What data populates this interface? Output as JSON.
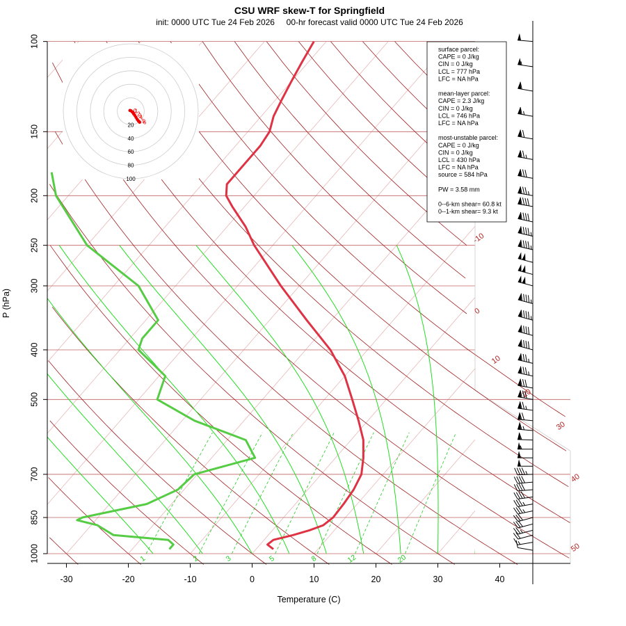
{
  "title": "CSU WRF skew-T for Springfield",
  "subtitle": "init: 0000 UTC Tue 24 Feb 2026     00-hr forecast valid 0000 UTC Tue 24 Feb 2026",
  "chart_data": {
    "type": "skew-t",
    "xlabel": "Temperature (C)",
    "ylabel": "P (hPa)",
    "xticks": [
      "-30",
      "-20",
      "-10",
      "0",
      "10",
      "20",
      "30",
      "40"
    ],
    "xtick_values": [
      -30,
      -20,
      -10,
      0,
      10,
      20,
      30,
      40
    ],
    "yticks": [
      "100",
      "150",
      "200",
      "250",
      "300",
      "400",
      "500",
      "700",
      "850",
      "1000"
    ],
    "ytick_values": [
      100,
      150,
      200,
      250,
      300,
      400,
      500,
      700,
      850,
      1000
    ],
    "xlim": [
      -33,
      45
    ],
    "ylim": [
      1050,
      100
    ],
    "isobars": [
      100,
      150,
      200,
      250,
      300,
      400,
      500,
      700,
      850,
      1000
    ],
    "isotherm_labels": [
      "-10",
      "0",
      "10",
      "20",
      "30",
      "40",
      "50"
    ],
    "isotherm_label_values": [
      -10,
      0,
      10,
      20,
      30,
      40,
      50
    ],
    "mixing_ratio_labels": [
      "1",
      "2",
      "3",
      "5",
      "8",
      "12",
      "20"
    ],
    "mixing_ratio_values": [
      1,
      2,
      3,
      5,
      8,
      12,
      20
    ],
    "temperature_profile": [
      [
        980,
        2.8
      ],
      [
        960,
        1.2
      ],
      [
        940,
        1.5
      ],
      [
        920,
        4.0
      ],
      [
        900,
        6.0
      ],
      [
        880,
        7.5
      ],
      [
        850,
        8.0
      ],
      [
        800,
        7.8
      ],
      [
        750,
        7.4
      ],
      [
        700,
        6.5
      ],
      [
        650,
        4.5
      ],
      [
        600,
        2.0
      ],
      [
        550,
        -1.5
      ],
      [
        500,
        -5.5
      ],
      [
        450,
        -10.0
      ],
      [
        400,
        -16.0
      ],
      [
        350,
        -24.0
      ],
      [
        300,
        -33.0
      ],
      [
        250,
        -43.0
      ],
      [
        230,
        -47.0
      ],
      [
        210,
        -52.0
      ],
      [
        200,
        -54.5
      ],
      [
        190,
        -56.0
      ],
      [
        180,
        -56.0
      ],
      [
        170,
        -56.0
      ],
      [
        160,
        -56.0
      ],
      [
        150,
        -56.5
      ],
      [
        140,
        -58.0
      ],
      [
        130,
        -59.0
      ],
      [
        120,
        -60.0
      ],
      [
        110,
        -61.0
      ],
      [
        100,
        -62.0
      ]
    ],
    "dewpoint_profile": [
      [
        980,
        -14.0
      ],
      [
        960,
        -14.0
      ],
      [
        940,
        -15.5
      ],
      [
        920,
        -25.0
      ],
      [
        880,
        -29.0
      ],
      [
        860,
        -33.0
      ],
      [
        850,
        -32.5
      ],
      [
        800,
        -24.0
      ],
      [
        750,
        -21.0
      ],
      [
        700,
        -20.5
      ],
      [
        650,
        -13.0
      ],
      [
        600,
        -17.0
      ],
      [
        550,
        -28.0
      ],
      [
        500,
        -37.0
      ],
      [
        450,
        -39.0
      ],
      [
        400,
        -47.0
      ],
      [
        380,
        -48.0
      ],
      [
        350,
        -48.0
      ],
      [
        300,
        -56.0
      ],
      [
        250,
        -70.0
      ],
      [
        200,
        -82.0
      ],
      [
        180,
        -86.0
      ]
    ],
    "wind_profile": [
      [
        985,
        280,
        8
      ],
      [
        950,
        260,
        15
      ],
      [
        920,
        255,
        20
      ],
      [
        900,
        255,
        25
      ],
      [
        875,
        255,
        28
      ],
      [
        850,
        255,
        30
      ],
      [
        825,
        258,
        33
      ],
      [
        800,
        260,
        35
      ],
      [
        775,
        262,
        38
      ],
      [
        750,
        265,
        40
      ],
      [
        725,
        265,
        42
      ],
      [
        700,
        268,
        45
      ],
      [
        675,
        270,
        48
      ],
      [
        650,
        270,
        50
      ],
      [
        625,
        270,
        55
      ],
      [
        600,
        272,
        60
      ],
      [
        575,
        275,
        65
      ],
      [
        550,
        275,
        70
      ],
      [
        525,
        278,
        75
      ],
      [
        500,
        280,
        80
      ],
      [
        475,
        280,
        80
      ],
      [
        450,
        282,
        85
      ],
      [
        425,
        283,
        85
      ],
      [
        400,
        285,
        90
      ],
      [
        375,
        285,
        90
      ],
      [
        350,
        285,
        95
      ],
      [
        325,
        285,
        95
      ],
      [
        300,
        285,
        100
      ],
      [
        285,
        285,
        100
      ],
      [
        270,
        285,
        100
      ],
      [
        255,
        283,
        95
      ],
      [
        240,
        283,
        95
      ],
      [
        225,
        282,
        90
      ],
      [
        210,
        280,
        90
      ],
      [
        200,
        280,
        85
      ],
      [
        185,
        280,
        80
      ],
      [
        170,
        280,
        75
      ],
      [
        155,
        280,
        70
      ],
      [
        140,
        280,
        65
      ],
      [
        125,
        280,
        60
      ],
      [
        112,
        278,
        55
      ],
      [
        100,
        275,
        50
      ]
    ],
    "hodograph": {
      "ring_labels": [
        "20",
        "40",
        "60",
        "80",
        "100"
      ],
      "ring_values": [
        20,
        40,
        60,
        80,
        100
      ],
      "points": [
        [
          -2,
          2
        ],
        [
          1,
          1
        ],
        [
          4,
          -2
        ],
        [
          7,
          -6
        ],
        [
          10,
          -10
        ],
        [
          13,
          -15
        ],
        [
          16,
          -20
        ],
        [
          19,
          -24
        ],
        [
          22,
          -27
        ]
      ],
      "height_labels": [
        "0",
        "1",
        "2",
        "3",
        "4",
        "5",
        "6"
      ]
    }
  },
  "stats": {
    "lines": [
      "surface parcel:",
      "CAPE = 0 J/kg",
      "CIN = 0 J/kg",
      "LCL = 777 hPa",
      "LFC = NA hPa",
      "",
      "mean-layer parcel:",
      "CAPE = 2.3 J/kg",
      "CIN = 0 J/kg",
      "LCL = 746 hPa",
      "LFC = NA hPa",
      "",
      "most-unstable parcel:",
      "CAPE = 0 J/kg",
      "CIN = 0 J/kg",
      "LCL = 430 hPa",
      "LFC = NA hPa",
      "source = 584 hPa",
      "",
      "PW =  3.58 mm",
      "",
      "0--6-km shear= 60.8 kt",
      "0--1-km shear= 9.3 kt"
    ]
  },
  "colors": {
    "isobar": "#c06060",
    "isotherm": "#e8b8b8",
    "dry_adiabat": "#a02020",
    "moist_adiabat": "#22dd22",
    "mixing_ratio": "#22cc22",
    "temperature": "#dd3344",
    "dewpoint": "#55cc44",
    "hodograph_ring": "#cccccc",
    "hodograph_trace": "#ee0000"
  }
}
